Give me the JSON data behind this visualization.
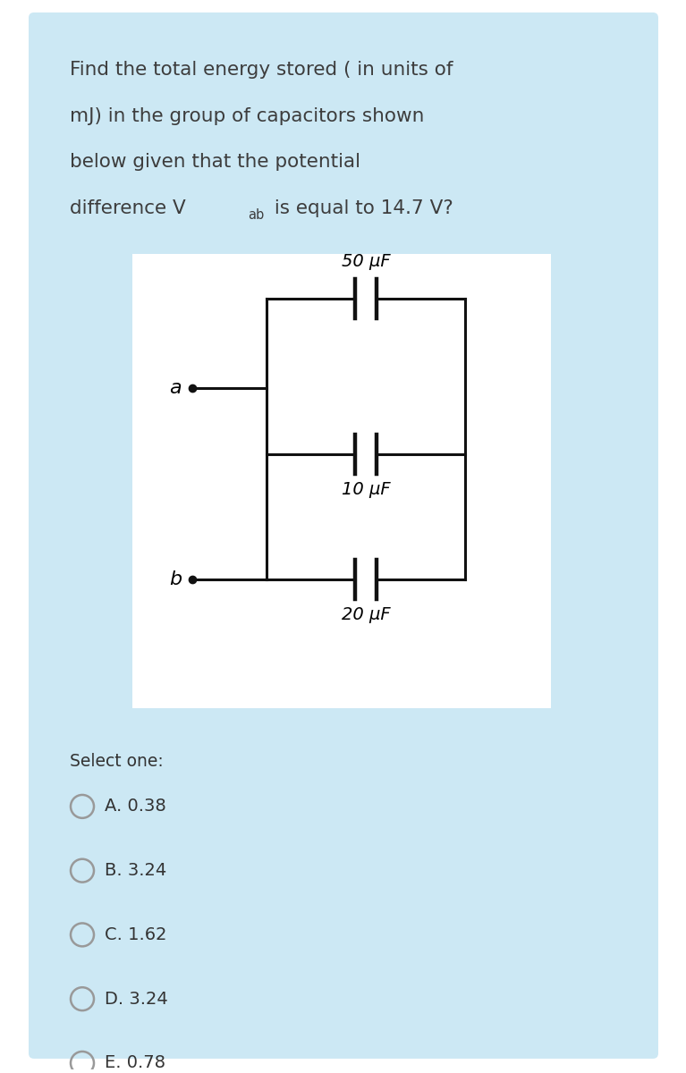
{
  "bg_outer": "#ffffff",
  "bg_card": "#cce8f4",
  "panel_bg": "#ffffff",
  "text_color": "#3d3d3d",
  "question_lines": [
    "Find the total energy stored ( in units of",
    "mJ) in the group of capacitors shown",
    "below given that the potential"
  ],
  "question_line4a": "difference V",
  "question_line4_sub": "ab",
  "question_line4b": " is equal to 14.7 V?",
  "cap_50": "50 μF",
  "cap_10": "10 μF",
  "cap_20": "20 μF",
  "label_a": "a",
  "label_b": "b",
  "select_one": "Select one:",
  "options": [
    "A. 0.38",
    "B. 3.24",
    "C. 1.62",
    "D. 3.24",
    "E. 0.78"
  ],
  "circuit_line_color": "#111111",
  "lw": 2.2
}
